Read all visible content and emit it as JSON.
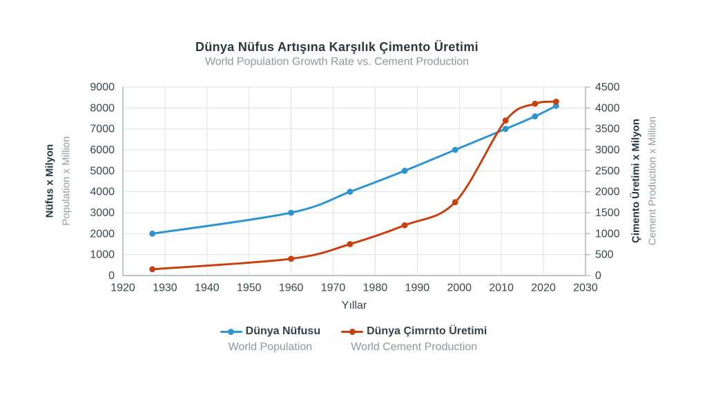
{
  "chart_data": {
    "type": "line",
    "title": "Dünya Nüfus Artışına Karşılık Çimento Üretimi",
    "subtitle": "World Population Growth Rate vs. Cement Production",
    "xlabel": "Yıllar",
    "x_range": [
      1920,
      2030
    ],
    "x_ticks": [
      1920,
      1930,
      1940,
      1950,
      1960,
      1970,
      1980,
      1990,
      2000,
      2010,
      2020,
      2030
    ],
    "grid": true,
    "legend_position": "bottom",
    "axes": {
      "left": {
        "label": "Nüfus x Milyon",
        "label_en": "Population x Million",
        "min": 0,
        "max": 9000,
        "ticks": [
          0,
          1000,
          2000,
          3000,
          4000,
          5000,
          6000,
          7000,
          8000,
          9000
        ]
      },
      "right": {
        "label": "Çimento Üretimi x Milyon",
        "label_en": "Cement Production x Million",
        "min": 0,
        "max": 4500,
        "ticks": [
          0,
          500,
          1000,
          1500,
          2000,
          2500,
          3000,
          3500,
          4000,
          4500
        ]
      }
    },
    "series": [
      {
        "name": "Dünya Nüfusu",
        "name_en": "World Population",
        "color": "#2e93d1",
        "axis": "left",
        "x": [
          1927,
          1960,
          1974,
          1987,
          1999,
          2011,
          2018,
          2023
        ],
        "y": [
          2000,
          3000,
          4000,
          5000,
          6000,
          7000,
          7600,
          8100
        ]
      },
      {
        "name": "Dünya Çimrnto Üretimi",
        "name_en": "World Cement Production",
        "color": "#c8400f",
        "axis": "right",
        "x": [
          1927,
          1960,
          1974,
          1987,
          1999,
          2011,
          2018,
          2023
        ],
        "y": [
          150,
          400,
          750,
          1200,
          1750,
          3700,
          4100,
          4150
        ]
      }
    ],
    "style": {
      "grid_color": "#dde1e2",
      "axis_color": "#a6b1b5",
      "tick_label_color": "#36464c"
    }
  }
}
